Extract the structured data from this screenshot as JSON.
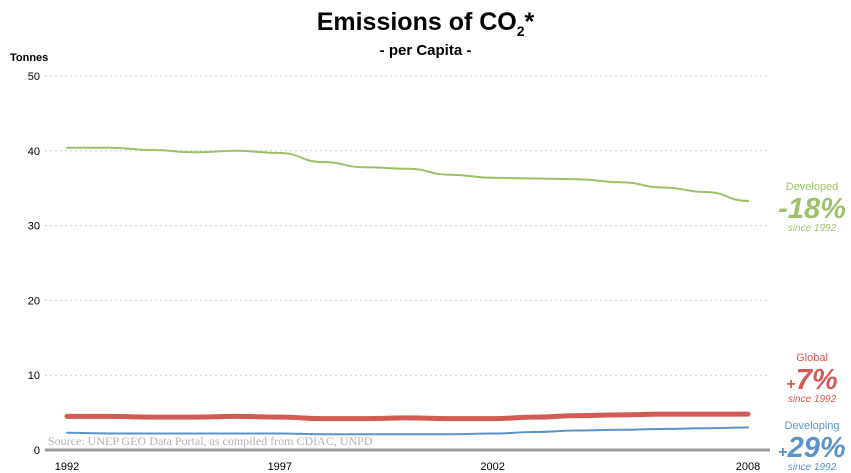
{
  "title_main": "Emissions of CO",
  "title_sub": "2",
  "title_star": "*",
  "subtitle": "- per Capita -",
  "unit_label": "Tonnes",
  "source": "Source: UNEP GEO Data Portal, as compiled from CDIAC, UNPD",
  "colors": {
    "developed": "#9dc16a",
    "global": "#d25b55",
    "developing": "#5b93c8",
    "grid": "#cccccc",
    "axis": "#999999"
  },
  "annotations": {
    "developed": {
      "label": "Developed",
      "sign": "-",
      "pct": "18%",
      "since": "since 1992"
    },
    "global": {
      "label": "Global",
      "sign": "+",
      "pct": "7%",
      "since": "since 1992"
    },
    "developing": {
      "label": "Developing",
      "sign": "+",
      "pct": "29%",
      "since": "since 1992"
    }
  },
  "chart_data": {
    "type": "line",
    "ylim": [
      0,
      50
    ],
    "yticks": [
      0,
      10,
      20,
      30,
      40,
      50
    ],
    "xlim": [
      1992,
      2008
    ],
    "xticks": [
      1992,
      1997,
      2002,
      2008
    ],
    "grid": true,
    "x": [
      1992,
      1993,
      1994,
      1995,
      1996,
      1997,
      1998,
      1999,
      2000,
      2001,
      2002,
      2003,
      2004,
      2005,
      2006,
      2007,
      2008
    ],
    "series": [
      {
        "name": "Developed",
        "values": [
          40.4,
          40.4,
          40.1,
          39.8,
          40.0,
          39.7,
          38.5,
          37.8,
          37.6,
          36.8,
          36.4,
          36.3,
          36.2,
          35.8,
          35.1,
          34.5,
          33.3
        ]
      },
      {
        "name": "Global",
        "values": [
          4.5,
          4.5,
          4.4,
          4.4,
          4.5,
          4.4,
          4.2,
          4.2,
          4.3,
          4.2,
          4.2,
          4.4,
          4.6,
          4.7,
          4.8,
          4.8,
          4.8
        ]
      },
      {
        "name": "Developing",
        "values": [
          2.3,
          2.2,
          2.2,
          2.2,
          2.2,
          2.2,
          2.1,
          2.1,
          2.1,
          2.1,
          2.2,
          2.4,
          2.6,
          2.7,
          2.8,
          2.9,
          3.0
        ]
      }
    ]
  }
}
